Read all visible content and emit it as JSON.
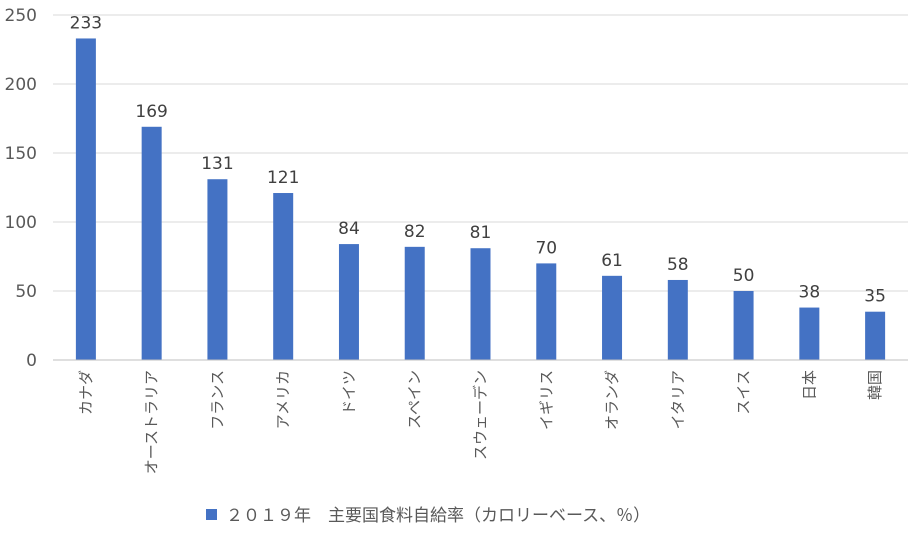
{
  "chart_data": {
    "type": "bar",
    "categories": [
      "カナダ",
      "オーストラリア",
      "フランス",
      "アメリカ",
      "ドイツ",
      "スペイン",
      "スウェーデン",
      "イギリス",
      "オランダ",
      "イタリア",
      "スイス",
      "日本",
      "韓国"
    ],
    "series": [
      {
        "name": "２０１９年　主要国食料自給率（カロリーベース、％）",
        "values": [
          233,
          169,
          131,
          121,
          84,
          82,
          81,
          70,
          61,
          58,
          50,
          38,
          35
        ],
        "data_labels": [
          "233",
          "169",
          "131",
          "121",
          "84",
          "82",
          "81",
          "70",
          "61",
          "58",
          "50",
          "38",
          "35"
        ]
      }
    ],
    "ylim": [
      0,
      250
    ],
    "yticks": [
      "0",
      "50",
      "100",
      "150",
      "200",
      "250"
    ],
    "grid": true,
    "legend": "bottom",
    "colors": {
      "bar": "#4472C4",
      "grid": "#D9D9D9",
      "axis": "#BFBFBF"
    }
  }
}
